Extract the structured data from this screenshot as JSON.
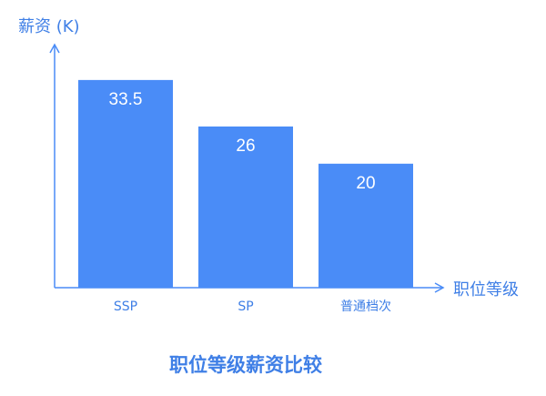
{
  "chart_data": {
    "type": "bar",
    "title": "职位等级薪资比较",
    "xlabel": "职位等级",
    "ylabel": "薪资 (K)",
    "categories": [
      "SSP",
      "SP",
      "普通档次"
    ],
    "values": [
      33.5,
      26,
      20
    ],
    "value_labels": [
      "33.5",
      "26",
      "20"
    ],
    "ylim": [
      0,
      42
    ],
    "grid": false,
    "legend": "none",
    "colors": {
      "bar": "#4a8cf7",
      "axis": "#4a8cf7",
      "text": "#3f7fe6",
      "label": "#ffffff"
    }
  }
}
